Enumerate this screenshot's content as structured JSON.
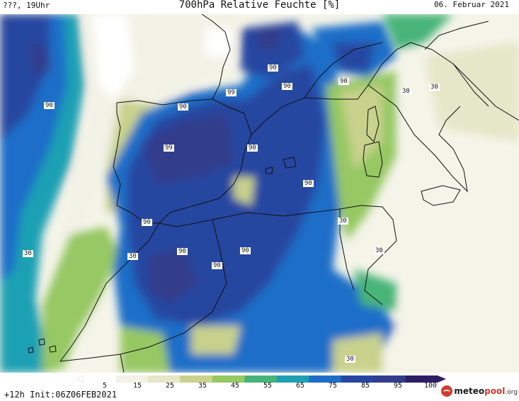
{
  "header": {
    "left": "???, 19Uhr",
    "title": "700hPa Relative Feuchte [%]",
    "date": "06. Februar 2021"
  },
  "map": {
    "region": "Iberian Peninsula, Western Mediterranean, Northwest Africa",
    "contour_labels": [
      "90",
      "90",
      "90",
      "90",
      "99",
      "90",
      "99",
      "90",
      "90",
      "90",
      "30",
      "30",
      "90",
      "90",
      "90",
      "30",
      "30",
      "30",
      "30",
      "30"
    ]
  },
  "colorbar": {
    "ticks": [
      "5",
      "15",
      "25",
      "35",
      "45",
      "55",
      "65",
      "75",
      "85",
      "95",
      "100"
    ],
    "colors": [
      "#ffffff",
      "#f2f2e6",
      "#e6e6c8",
      "#c8d28c",
      "#96c864",
      "#46b478",
      "#1ea0b4",
      "#1e6ec8",
      "#2846a0",
      "#323c8c",
      "#2d1e64"
    ]
  },
  "footer": {
    "init": "+12h Init:06Z06FEB2021",
    "logo_main": "meteo",
    "logo_accent": "pool",
    "logo_suffix": ".org"
  }
}
